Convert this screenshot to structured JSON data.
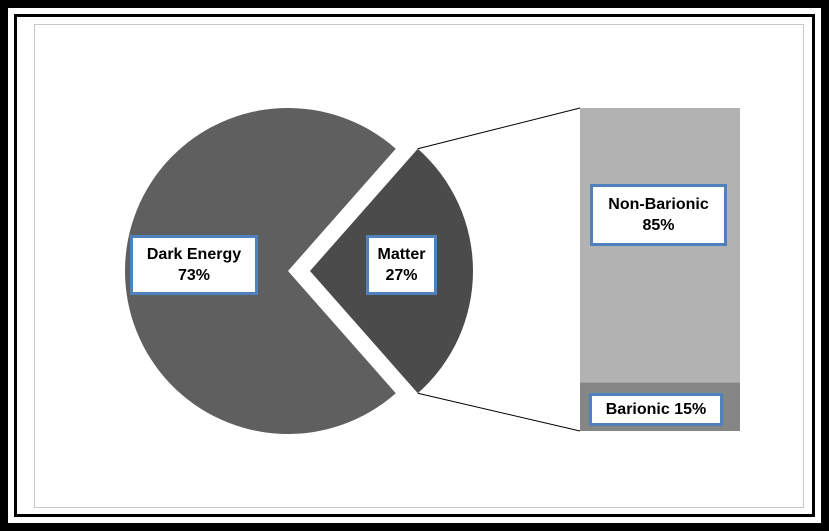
{
  "chart_data": {
    "type": "pie",
    "title": "",
    "slices": [
      {
        "name": "Dark Energy",
        "value": 73,
        "label": "73%",
        "color": "#5f5f5f"
      },
      {
        "name": "Matter",
        "value": 27,
        "label": "27%",
        "color": "#4b4b4b",
        "exploded": true
      }
    ],
    "breakdown": {
      "of": "Matter",
      "type": "stacked-bar",
      "segments": [
        {
          "name": "Non-Barionic",
          "value": 85,
          "label": "85%",
          "color": "#b2b2b2"
        },
        {
          "name": "Barionic",
          "value": 15,
          "label": "15%",
          "color": "#868686"
        }
      ]
    },
    "legend": "none",
    "grid": false
  },
  "labels": {
    "dark_energy_name": "Dark Energy",
    "dark_energy_pct": "73%",
    "matter_name": "Matter",
    "matter_pct": "27%",
    "non_barionic_name": "Non-Barionic",
    "non_barionic_pct": "85%",
    "barionic": "Barionic 15%"
  }
}
